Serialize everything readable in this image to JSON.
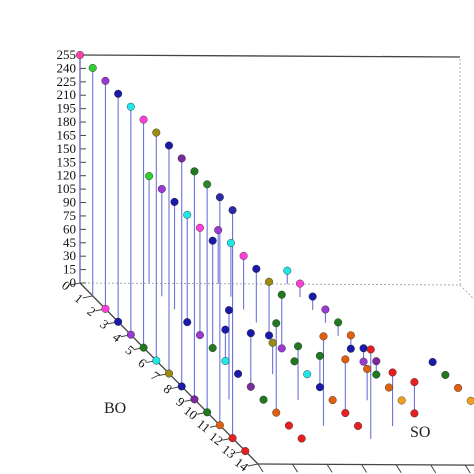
{
  "chart_data": {
    "type": "scatter",
    "title": "",
    "subtitle": "",
    "dimensions": 3,
    "xlabel": "BO",
    "ylabel": "SO",
    "zlabel": "",
    "xlim": [
      0,
      14
    ],
    "ylim": [
      0,
      11
    ],
    "zlim": [
      0,
      255
    ],
    "x_ticks": [
      "0",
      "1",
      "2",
      "3",
      "4",
      "5",
      "6",
      "7",
      "8",
      "9",
      "10",
      "11",
      "12",
      "13",
      "14"
    ],
    "y_ticks": [
      "0",
      "1",
      "2",
      "3",
      "4",
      "5",
      "6",
      "7",
      "8",
      "9",
      "10",
      "11"
    ],
    "z_ticks": [
      "0",
      "15",
      "30",
      "45",
      "60",
      "75",
      "90",
      "105",
      "120",
      "135",
      "150",
      "165",
      "180",
      "195",
      "210",
      "225",
      "240",
      "255"
    ],
    "grid": false,
    "drop_lines": true,
    "points": [
      {
        "x": 0,
        "y": 0,
        "z": 255,
        "color": "#ff3fae"
      },
      {
        "x": 1,
        "y": 0,
        "z": 255,
        "color": "#33cc33"
      },
      {
        "x": 2,
        "y": 0,
        "z": 255,
        "color": "#9a3ad0"
      },
      {
        "x": 3,
        "y": 0,
        "z": 255,
        "color": "#1a1aa8"
      },
      {
        "x": 4,
        "y": 0,
        "z": 255,
        "color": "#22e6e6"
      },
      {
        "x": 5,
        "y": 0,
        "z": 255,
        "color": "#ff3fd9"
      },
      {
        "x": 6,
        "y": 0,
        "z": 255,
        "color": "#9c8a12"
      },
      {
        "x": 7,
        "y": 0,
        "z": 255,
        "color": "#1a1aa8"
      },
      {
        "x": 8,
        "y": 0,
        "z": 255,
        "color": "#7a2a9a"
      },
      {
        "x": 9,
        "y": 0,
        "z": 255,
        "color": "#1f7a1f"
      },
      {
        "x": 10,
        "y": 0,
        "z": 255,
        "color": "#2a8a2a"
      },
      {
        "x": 11,
        "y": 0,
        "z": 255,
        "color": "#2a2aa8"
      },
      {
        "x": 12,
        "y": 0,
        "z": 255,
        "color": "#2a2aa8"
      },
      {
        "x": 0,
        "y": 2,
        "z": 120,
        "color": "#33cc33"
      },
      {
        "x": 1,
        "y": 2,
        "z": 120,
        "color": "#9a3ad0"
      },
      {
        "x": 2,
        "y": 2,
        "z": 120,
        "color": "#1a1aa8"
      },
      {
        "x": 3,
        "y": 2,
        "z": 120,
        "color": "#22e6e6"
      },
      {
        "x": 4,
        "y": 2,
        "z": 120,
        "color": "#ff3fd9"
      },
      {
        "x": 5,
        "y": 2,
        "z": 120,
        "color": "#1a1aa8"
      },
      {
        "x": 0,
        "y": 4,
        "z": 60,
        "color": "#9a3ad0"
      },
      {
        "x": 1,
        "y": 4,
        "z": 60,
        "color": "#22e6e6"
      },
      {
        "x": 2,
        "y": 4,
        "z": 60,
        "color": "#ff3fd9"
      },
      {
        "x": 3,
        "y": 4,
        "z": 60,
        "color": "#1a1aa8"
      },
      {
        "x": 4,
        "y": 4,
        "z": 60,
        "color": "#9c8a12"
      },
      {
        "x": 5,
        "y": 4,
        "z": 60,
        "color": "#1f7a1f"
      },
      {
        "x": 0,
        "y": 6,
        "z": 15,
        "color": "#22e6e6"
      },
      {
        "x": 1,
        "y": 6,
        "z": 15,
        "color": "#ff3fd9"
      },
      {
        "x": 2,
        "y": 6,
        "z": 15,
        "color": "#1a1aa8"
      },
      {
        "x": 3,
        "y": 6,
        "z": 15,
        "color": "#9a3ad0"
      },
      {
        "x": 4,
        "y": 6,
        "z": 15,
        "color": "#1f7a1f"
      },
      {
        "x": 5,
        "y": 6,
        "z": 15,
        "color": "#e06010"
      },
      {
        "x": 6,
        "y": 6,
        "z": 15,
        "color": "#1a1aa8"
      },
      {
        "x": 7,
        "y": 6,
        "z": 15,
        "color": "#7a2a9a"
      },
      {
        "x": 2,
        "y": 0,
        "z": 0,
        "color": "#ff3fd9"
      },
      {
        "x": 3,
        "y": 0,
        "z": 0,
        "color": "#1a1aa8"
      },
      {
        "x": 4,
        "y": 0,
        "z": 0,
        "color": "#9a3ad0"
      },
      {
        "x": 5,
        "y": 0,
        "z": 0,
        "color": "#1f7a1f"
      },
      {
        "x": 6,
        "y": 0,
        "z": 0,
        "color": "#22e6e6"
      },
      {
        "x": 7,
        "y": 0,
        "z": 0,
        "color": "#9c8a12"
      },
      {
        "x": 8,
        "y": 0,
        "z": 0,
        "color": "#1a1aa8"
      },
      {
        "x": 9,
        "y": 0,
        "z": 0,
        "color": "#7a2a9a"
      },
      {
        "x": 10,
        "y": 0,
        "z": 0,
        "color": "#1f7a1f"
      },
      {
        "x": 11,
        "y": 0,
        "z": 0,
        "color": "#e06010"
      },
      {
        "x": 12,
        "y": 0,
        "z": 0,
        "color": "#e62020"
      },
      {
        "x": 13,
        "y": 0,
        "z": 0,
        "color": "#e62020"
      },
      {
        "x": 3,
        "y": 2,
        "z": 0,
        "color": "#1a1aa8"
      },
      {
        "x": 4,
        "y": 2,
        "z": 0,
        "color": "#9a3ad0"
      },
      {
        "x": 5,
        "y": 2,
        "z": 0,
        "color": "#1f7a1f"
      },
      {
        "x": 6,
        "y": 2,
        "z": 0,
        "color": "#22e6e6"
      },
      {
        "x": 7,
        "y": 2,
        "z": 0,
        "color": "#1a1aa8"
      },
      {
        "x": 8,
        "y": 2,
        "z": 0,
        "color": "#7a2a9a"
      },
      {
        "x": 9,
        "y": 2,
        "z": 0,
        "color": "#1f7a1f"
      },
      {
        "x": 10,
        "y": 2,
        "z": 0,
        "color": "#e06010"
      },
      {
        "x": 11,
        "y": 2,
        "z": 0,
        "color": "#e62020"
      },
      {
        "x": 12,
        "y": 2,
        "z": 0,
        "color": "#e62020"
      },
      {
        "x": 4,
        "y": 4,
        "z": 0,
        "color": "#1a1aa8"
      },
      {
        "x": 5,
        "y": 4,
        "z": 0,
        "color": "#9a3ad0"
      },
      {
        "x": 6,
        "y": 4,
        "z": 0,
        "color": "#1f7a1f"
      },
      {
        "x": 7,
        "y": 4,
        "z": 0,
        "color": "#22e6e6"
      },
      {
        "x": 8,
        "y": 4,
        "z": 0,
        "color": "#1a1aa8"
      },
      {
        "x": 9,
        "y": 4,
        "z": 0,
        "color": "#e06010"
      },
      {
        "x": 10,
        "y": 4,
        "z": 0,
        "color": "#e62020"
      },
      {
        "x": 11,
        "y": 4,
        "z": 0,
        "color": "#e62020"
      },
      {
        "x": 5,
        "y": 6,
        "z": 0,
        "color": "#1a1aa8"
      },
      {
        "x": 6,
        "y": 6,
        "z": 0,
        "color": "#9a3ad0"
      },
      {
        "x": 7,
        "y": 6,
        "z": 0,
        "color": "#1f7a1f"
      },
      {
        "x": 8,
        "y": 6,
        "z": 0,
        "color": "#e06010"
      },
      {
        "x": 9,
        "y": 6,
        "z": 0,
        "color": "#f0a020"
      },
      {
        "x": 10,
        "y": 6,
        "z": 0,
        "color": "#e62020"
      },
      {
        "x": 6,
        "y": 8,
        "z": 0,
        "color": "#1a1aa8"
      },
      {
        "x": 7,
        "y": 8,
        "z": 0,
        "color": "#1f7a1f"
      },
      {
        "x": 8,
        "y": 8,
        "z": 0,
        "color": "#e06010"
      },
      {
        "x": 9,
        "y": 8,
        "z": 0,
        "color": "#f0a020"
      },
      {
        "x": 7,
        "y": 10,
        "z": 0,
        "color": "#1f7a1f"
      },
      {
        "x": 8,
        "y": 10,
        "z": 0,
        "color": "#e06010"
      },
      {
        "x": 6,
        "y": 2,
        "z": 35,
        "color": "#1a1aa8"
      },
      {
        "x": 7,
        "y": 3,
        "z": 35,
        "color": "#9c8a12"
      },
      {
        "x": 8,
        "y": 4,
        "z": 35,
        "color": "#1f7a1f"
      },
      {
        "x": 9,
        "y": 5,
        "z": 35,
        "color": "#e06010"
      },
      {
        "x": 10,
        "y": 6,
        "z": 35,
        "color": "#e62020"
      },
      {
        "x": 8,
        "y": 2,
        "z": 60,
        "color": "#1a1aa8"
      },
      {
        "x": 9,
        "y": 3,
        "z": 60,
        "color": "#1f7a1f"
      },
      {
        "x": 10,
        "y": 4,
        "z": 60,
        "color": "#e06010"
      },
      {
        "x": 11,
        "y": 5,
        "z": 60,
        "color": "#e62020"
      },
      {
        "x": 9,
        "y": 1,
        "z": 100,
        "color": "#1a1aa8"
      },
      {
        "x": 10,
        "y": 2,
        "z": 100,
        "color": "#1f7a1f"
      },
      {
        "x": 11,
        "y": 3,
        "z": 100,
        "color": "#e06010"
      },
      {
        "x": 12,
        "y": 4,
        "z": 100,
        "color": "#e62020"
      }
    ]
  }
}
